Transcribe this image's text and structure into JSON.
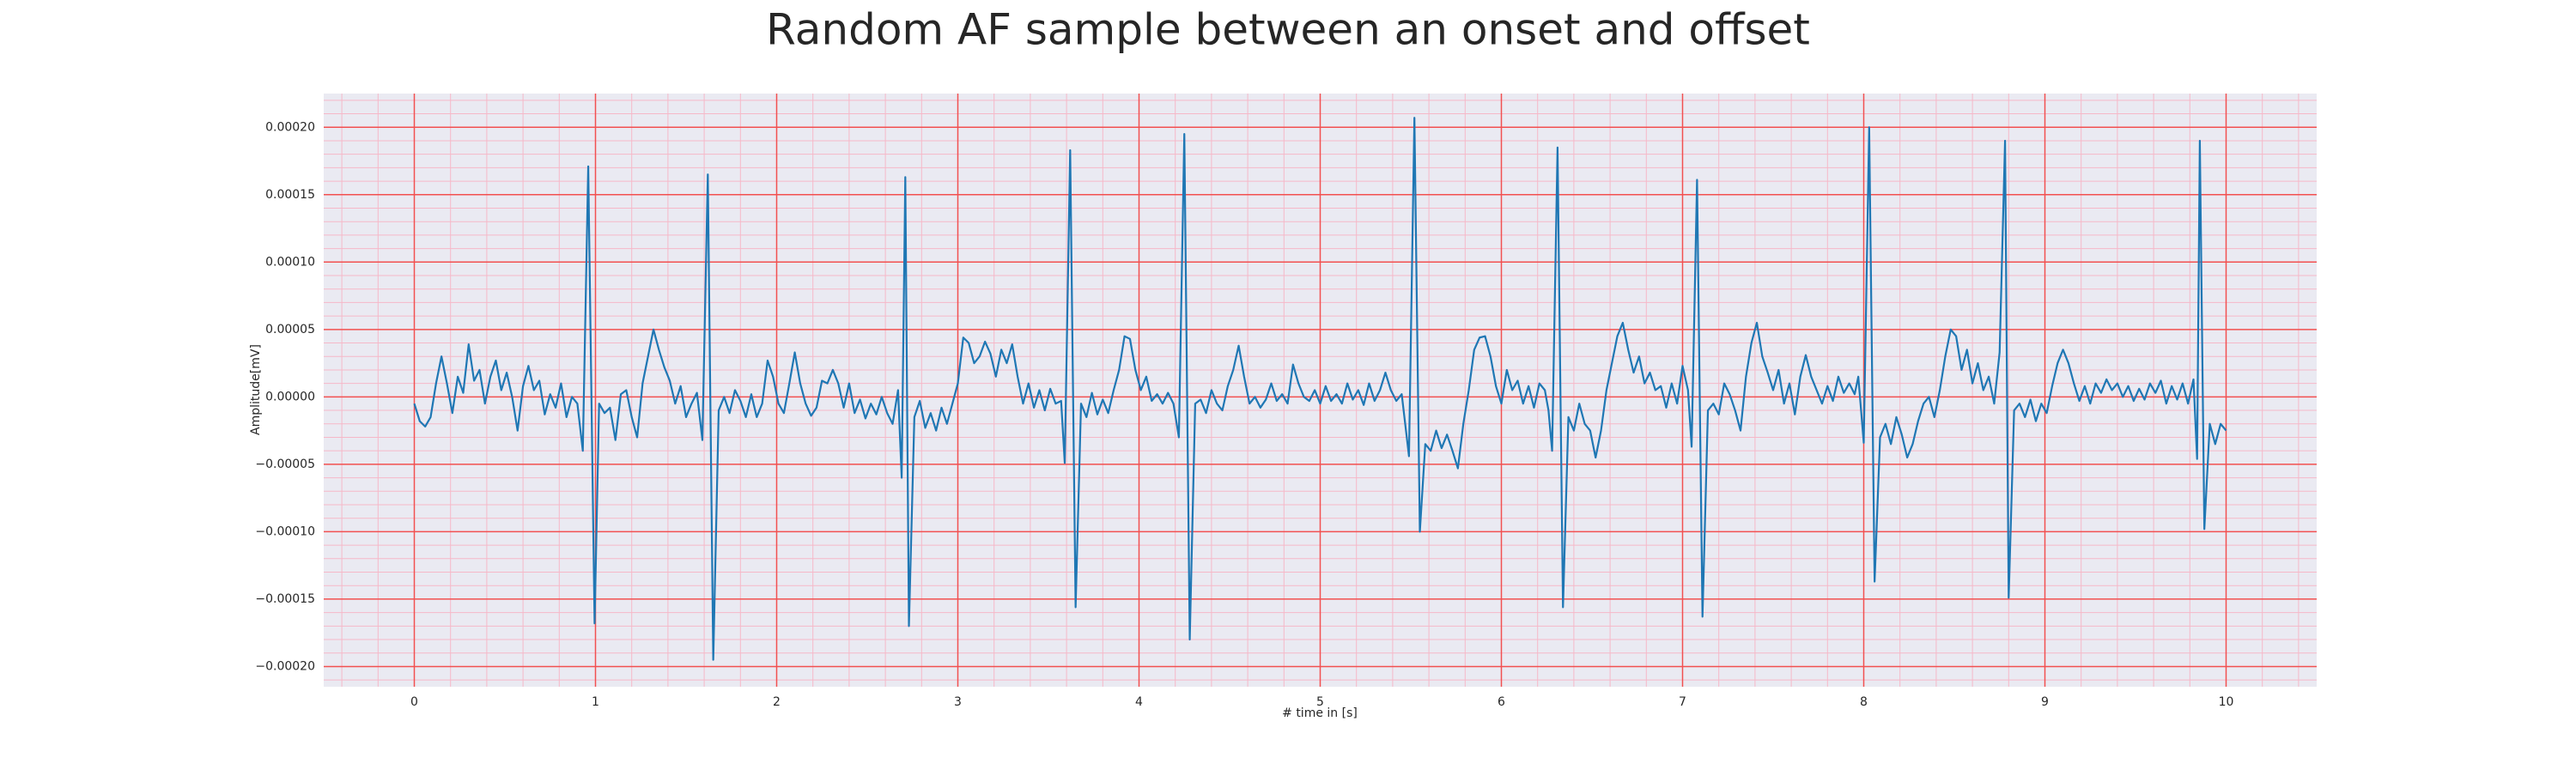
{
  "chart_data": {
    "type": "line",
    "title": "Random AF sample between an onset and offset",
    "x_label": "# time in [s]",
    "y_label": "Amplitude[mV]",
    "color": "#1f77b4",
    "grid": true,
    "xlim": [
      -0.5,
      10.5
    ],
    "ylim": [
      -0.000215,
      0.000225
    ],
    "xticks": [
      0,
      1,
      2,
      3,
      4,
      5,
      6,
      7,
      8,
      9,
      10
    ],
    "yticks": [
      {
        "value": -0.0002,
        "label": "−0.00020"
      },
      {
        "value": -0.00015,
        "label": "−0.00015"
      },
      {
        "value": -0.0001,
        "label": "−0.00010"
      },
      {
        "value": -5e-05,
        "label": "−0.00005"
      },
      {
        "value": 0,
        "label": "0.00000"
      },
      {
        "value": 5e-05,
        "label": "0.00005"
      },
      {
        "value": 0.0001,
        "label": "0.00010"
      },
      {
        "value": 0.00015,
        "label": "0.00015"
      },
      {
        "value": 0.0002,
        "label": "0.00020"
      }
    ],
    "xminorticks": [
      -0.4,
      -0.2,
      0.2,
      0.4,
      0.6,
      0.8,
      1.2,
      1.4,
      1.6,
      1.8,
      2.2,
      2.4,
      2.6,
      2.8,
      3.2,
      3.4,
      3.6,
      3.8,
      4.2,
      4.4,
      4.6,
      4.8,
      5.2,
      5.4,
      5.6,
      5.8,
      6.2,
      6.4,
      6.6,
      6.8,
      7.2,
      7.4,
      7.6,
      7.8,
      8.2,
      8.4,
      8.6,
      8.8,
      9.2,
      9.4,
      9.6,
      9.8,
      10.2,
      10.4
    ],
    "yminorticks": [
      -0.00021,
      -0.00019,
      -0.00018,
      -0.00017,
      -0.00016,
      -0.00014,
      -0.00013,
      -0.00012,
      -0.00011,
      -9e-05,
      -8e-05,
      -7e-05,
      -6e-05,
      -4e-05,
      -3e-05,
      -2e-05,
      -1e-05,
      1e-05,
      2e-05,
      3e-05,
      4e-05,
      6e-05,
      7e-05,
      8e-05,
      9e-05,
      0.00011,
      0.00012,
      0.00013,
      0.00014,
      0.00016,
      0.00017,
      0.00018,
      0.00019,
      0.00021,
      0.00022
    ],
    "x": [
      0,
      0.03,
      0.06,
      0.09,
      0.12,
      0.15,
      0.18,
      0.21,
      0.24,
      0.27,
      0.3,
      0.33,
      0.36,
      0.39,
      0.42,
      0.45,
      0.48,
      0.51,
      0.54,
      0.57,
      0.6,
      0.63,
      0.66,
      0.69,
      0.72,
      0.75,
      0.78,
      0.81,
      0.84,
      0.87,
      0.9,
      0.93,
      0.96,
      0.995,
      1.02,
      1.05,
      1.08,
      1.11,
      1.14,
      1.17,
      1.2,
      1.23,
      1.26,
      1.29,
      1.32,
      1.35,
      1.38,
      1.41,
      1.44,
      1.47,
      1.5,
      1.53,
      1.56,
      1.59,
      1.62,
      1.65,
      1.68,
      1.71,
      1.74,
      1.77,
      1.8,
      1.83,
      1.86,
      1.89,
      1.92,
      1.95,
      1.98,
      2.01,
      2.04,
      2.07,
      2.1,
      2.13,
      2.16,
      2.19,
      2.22,
      2.25,
      2.28,
      2.31,
      2.34,
      2.37,
      2.4,
      2.43,
      2.46,
      2.49,
      2.52,
      2.55,
      2.58,
      2.61,
      2.64,
      2.67,
      2.69,
      2.71,
      2.73,
      2.76,
      2.79,
      2.82,
      2.85,
      2.88,
      2.91,
      2.94,
      2.97,
      3,
      3.03,
      3.06,
      3.09,
      3.12,
      3.15,
      3.18,
      3.21,
      3.24,
      3.27,
      3.3,
      3.33,
      3.36,
      3.39,
      3.42,
      3.45,
      3.48,
      3.51,
      3.54,
      3.57,
      3.59,
      3.62,
      3.65,
      3.68,
      3.71,
      3.74,
      3.77,
      3.8,
      3.83,
      3.86,
      3.89,
      3.92,
      3.95,
      3.98,
      4.01,
      4.04,
      4.07,
      4.1,
      4.13,
      4.16,
      4.19,
      4.22,
      4.25,
      4.28,
      4.31,
      4.34,
      4.37,
      4.4,
      4.43,
      4.46,
      4.49,
      4.52,
      4.55,
      4.58,
      4.61,
      4.64,
      4.67,
      4.7,
      4.73,
      4.76,
      4.79,
      4.82,
      4.85,
      4.88,
      4.91,
      4.94,
      4.97,
      5,
      5.03,
      5.06,
      5.09,
      5.12,
      5.15,
      5.18,
      5.21,
      5.24,
      5.27,
      5.3,
      5.33,
      5.36,
      5.39,
      5.42,
      5.45,
      5.49,
      5.52,
      5.55,
      5.58,
      5.61,
      5.64,
      5.67,
      5.7,
      5.73,
      5.76,
      5.79,
      5.82,
      5.85,
      5.88,
      5.91,
      5.94,
      5.97,
      6,
      6.03,
      6.06,
      6.09,
      6.12,
      6.15,
      6.18,
      6.21,
      6.24,
      6.26,
      6.28,
      6.31,
      6.34,
      6.37,
      6.4,
      6.43,
      6.46,
      6.49,
      6.52,
      6.55,
      6.58,
      6.61,
      6.64,
      6.67,
      6.7,
      6.73,
      6.76,
      6.79,
      6.82,
      6.85,
      6.88,
      6.91,
      6.94,
      6.97,
      7,
      7.03,
      7.05,
      7.08,
      7.11,
      7.14,
      7.17,
      7.2,
      7.23,
      7.26,
      7.29,
      7.32,
      7.35,
      7.38,
      7.41,
      7.44,
      7.47,
      7.5,
      7.53,
      7.56,
      7.59,
      7.62,
      7.65,
      7.68,
      7.71,
      7.74,
      7.77,
      7.8,
      7.83,
      7.86,
      7.89,
      7.92,
      7.95,
      7.97,
      8,
      8.03,
      8.06,
      8.09,
      8.12,
      8.15,
      8.18,
      8.21,
      8.24,
      8.27,
      8.3,
      8.33,
      8.36,
      8.39,
      8.42,
      8.45,
      8.48,
      8.51,
      8.54,
      8.57,
      8.6,
      8.63,
      8.66,
      8.69,
      8.72,
      8.75,
      8.78,
      8.8,
      8.83,
      8.86,
      8.89,
      8.92,
      8.95,
      8.98,
      9.01,
      9.04,
      9.07,
      9.1,
      9.13,
      9.16,
      9.19,
      9.22,
      9.25,
      9.28,
      9.31,
      9.34,
      9.37,
      9.4,
      9.43,
      9.46,
      9.49,
      9.52,
      9.55,
      9.58,
      9.61,
      9.64,
      9.67,
      9.7,
      9.73,
      9.76,
      9.79,
      9.82,
      9.84,
      9.855,
      9.88,
      9.91,
      9.94,
      9.97,
      10
    ],
    "values": [
      -5e-06,
      -1.8e-05,
      -2.2e-05,
      -1.5e-05,
      1e-05,
      3e-05,
      1e-05,
      -1.2e-05,
      1.5e-05,
      3e-06,
      3.9e-05,
      1.2e-05,
      2e-05,
      -5e-06,
      1.5e-05,
      2.7e-05,
      5e-06,
      1.8e-05,
      0,
      -2.5e-05,
      8e-06,
      2.3e-05,
      5e-06,
      1.2e-05,
      -1.3e-05,
      2e-06,
      -8e-06,
      1e-05,
      -1.5e-05,
      0,
      -5e-06,
      -4e-05,
      0.000171,
      -0.000168,
      -5e-06,
      -1.2e-05,
      -8e-06,
      -3.2e-05,
      2e-06,
      5e-06,
      -1.5e-05,
      -3e-05,
      1e-05,
      3e-05,
      5e-05,
      3.5e-05,
      2.2e-05,
      1.2e-05,
      -5e-06,
      8e-06,
      -1.5e-05,
      -5e-06,
      3e-06,
      -3.2e-05,
      0.000165,
      -0.000195,
      -1e-05,
      0,
      -1.2e-05,
      5e-06,
      -3e-06,
      -1.5e-05,
      2e-06,
      -1.5e-05,
      -5e-06,
      2.7e-05,
      1.5e-05,
      -5e-06,
      -1.2e-05,
      1e-05,
      3.3e-05,
      1e-05,
      -5e-06,
      -1.4e-05,
      -8e-06,
      1.2e-05,
      1e-05,
      2e-05,
      1e-05,
      -8e-06,
      1e-05,
      -1.2e-05,
      -2e-06,
      -1.6e-05,
      -5e-06,
      -1.3e-05,
      0,
      -1.2e-05,
      -2e-05,
      5e-06,
      -6e-05,
      0.000163,
      -0.00017,
      -1.5e-05,
      -3e-06,
      -2.3e-05,
      -1.2e-05,
      -2.5e-05,
      -8e-06,
      -2e-05,
      -5e-06,
      1e-05,
      4.4e-05,
      4e-05,
      2.5e-05,
      3e-05,
      4.1e-05,
      3.2e-05,
      1.5e-05,
      3.5e-05,
      2.5e-05,
      3.9e-05,
      1.5e-05,
      -5e-06,
      1e-05,
      -8e-06,
      5e-06,
      -1e-05,
      6e-06,
      -5e-06,
      -3e-06,
      -4.9e-05,
      0.000183,
      -0.000156,
      -5e-06,
      -1.5e-05,
      3e-06,
      -1.3e-05,
      -2e-06,
      -1.2e-05,
      5e-06,
      2e-05,
      4.5e-05,
      4.3e-05,
      2e-05,
      5e-06,
      1.5e-05,
      -3e-06,
      2e-06,
      -5e-06,
      3e-06,
      -5e-06,
      -3e-05,
      0.000195,
      -0.00018,
      -5e-06,
      -2e-06,
      -1.2e-05,
      5e-06,
      -5e-06,
      -1e-05,
      8e-06,
      2e-05,
      3.8e-05,
      1.5e-05,
      -5e-06,
      0,
      -8e-06,
      -2e-06,
      1e-05,
      -3e-06,
      2e-06,
      -5e-06,
      2.4e-05,
      1e-05,
      0,
      -3e-06,
      5e-06,
      -5e-06,
      8e-06,
      -3e-06,
      2e-06,
      -5e-06,
      1e-05,
      -2e-06,
      5e-06,
      -6e-06,
      1e-05,
      -3e-06,
      5e-06,
      1.8e-05,
      5e-06,
      -3e-06,
      2e-06,
      -4.4e-05,
      0.000207,
      -0.0001,
      -3.5e-05,
      -4e-05,
      -2.5e-05,
      -3.8e-05,
      -2.8e-05,
      -4e-05,
      -5.3e-05,
      -2e-05,
      5e-06,
      3.5e-05,
      4.4e-05,
      4.5e-05,
      3e-05,
      8e-06,
      -5e-06,
      2e-05,
      5e-06,
      1.2e-05,
      -5e-06,
      8e-06,
      -8e-06,
      1e-05,
      5e-06,
      -1e-05,
      -4e-05,
      0.000185,
      -0.000156,
      -1.5e-05,
      -2.5e-05,
      -5e-06,
      -2e-05,
      -2.5e-05,
      -4.5e-05,
      -2.5e-05,
      5e-06,
      2.5e-05,
      4.5e-05,
      5.5e-05,
      3.5e-05,
      1.8e-05,
      3e-05,
      1e-05,
      1.8e-05,
      5e-06,
      8e-06,
      -8e-06,
      1e-05,
      -5e-06,
      2.3e-05,
      5e-06,
      -3.7e-05,
      0.000161,
      -0.000163,
      -1e-05,
      -5e-06,
      -1.3e-05,
      1e-05,
      2e-06,
      -1e-05,
      -2.5e-05,
      1.5e-05,
      4e-05,
      5.5e-05,
      3e-05,
      1.8e-05,
      5e-06,
      2e-05,
      -5e-06,
      1e-05,
      -1.3e-05,
      1.5e-05,
      3.1e-05,
      1.5e-05,
      5e-06,
      -5e-06,
      8e-06,
      -3e-06,
      1.5e-05,
      3e-06,
      1e-05,
      2e-06,
      1.5e-05,
      -3.4e-05,
      0.0002,
      -0.000137,
      -3e-05,
      -2e-05,
      -3.5e-05,
      -1.5e-05,
      -2.8e-05,
      -4.5e-05,
      -3.5e-05,
      -1.8e-05,
      -5e-06,
      0,
      -1.5e-05,
      5e-06,
      3e-05,
      5e-05,
      4.5e-05,
      2e-05,
      3.5e-05,
      1e-05,
      2.5e-05,
      5e-06,
      1.5e-05,
      -5e-06,
      3.3e-05,
      0.00019,
      -0.000149,
      -1e-05,
      -5e-06,
      -1.5e-05,
      -2e-06,
      -1.8e-05,
      -5e-06,
      -1.2e-05,
      8e-06,
      2.5e-05,
      3.5e-05,
      2.5e-05,
      1e-05,
      -3e-06,
      8e-06,
      -5e-06,
      1e-05,
      3e-06,
      1.3e-05,
      5e-06,
      1e-05,
      0,
      8e-06,
      -3e-06,
      6e-06,
      -2e-06,
      1e-05,
      3e-06,
      1.2e-05,
      -5e-06,
      8e-06,
      -2e-06,
      1e-05,
      -5e-06,
      1.3e-05,
      -4.6e-05,
      0.00019,
      -9.8e-05,
      -2e-05,
      -3.5e-05,
      -2e-05,
      -2.5e-05
    ]
  }
}
